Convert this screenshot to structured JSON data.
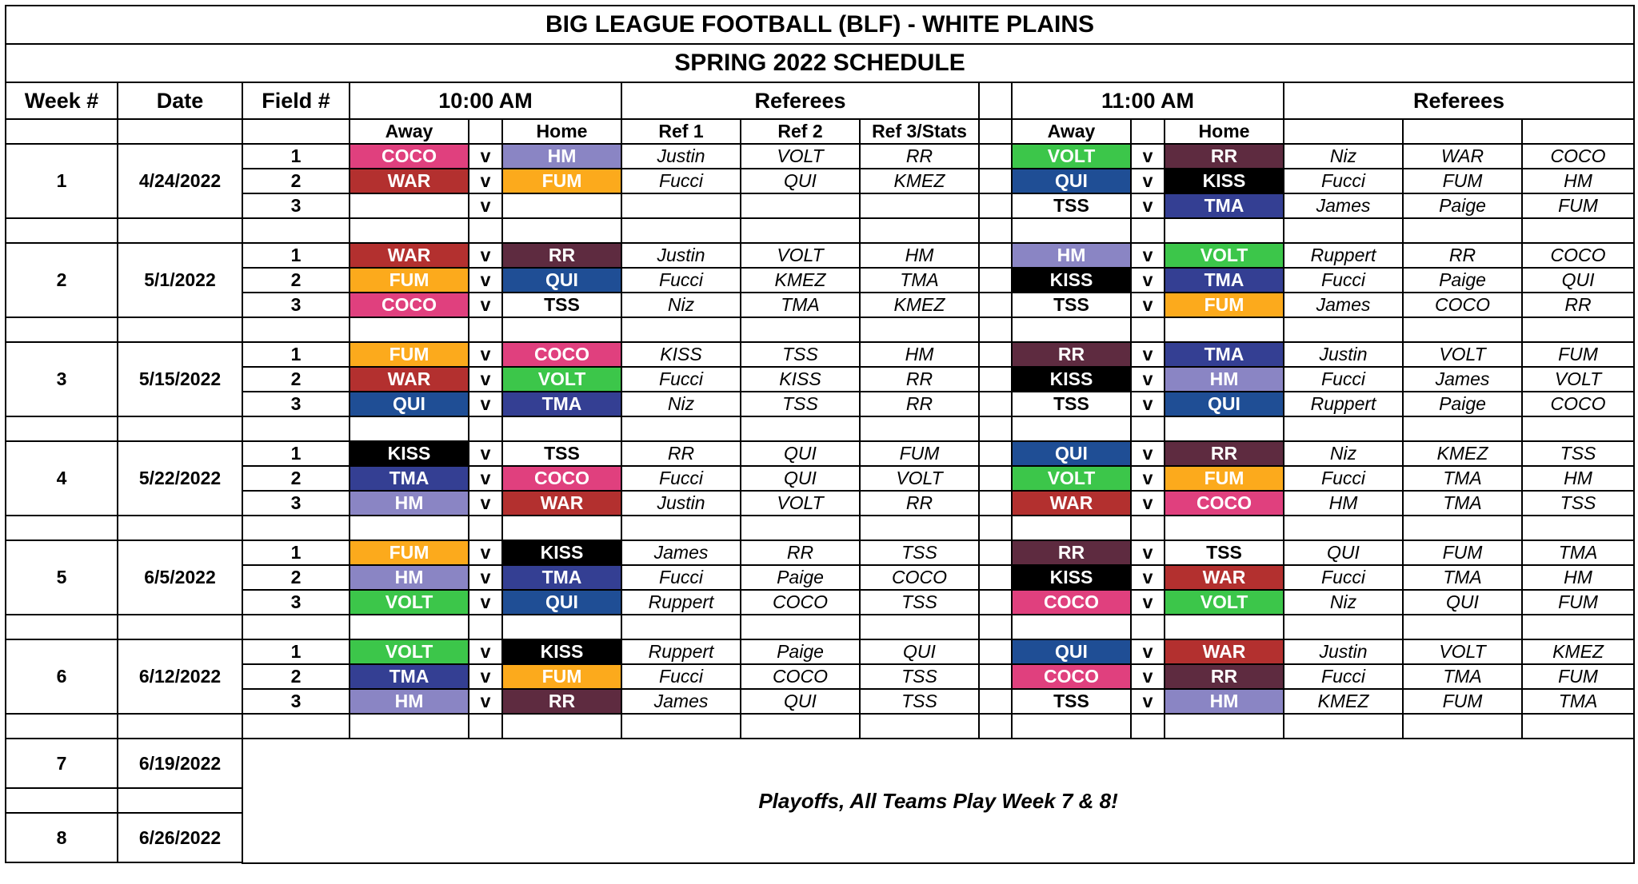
{
  "title": "BIG LEAGUE FOOTBALL (BLF) - WHITE PLAINS",
  "subtitle": "SPRING 2022 SCHEDULE",
  "headers": {
    "week": "Week #",
    "date": "Date",
    "field": "Field #",
    "slot1": "10:00 AM",
    "refs1": "Referees",
    "slot2": "11:00 AM",
    "refs2": "Referees"
  },
  "subheaders": {
    "away1": "Away",
    "home1": "Home",
    "ref1": "Ref 1",
    "ref2": "Ref 2",
    "ref3": "Ref 3/Stats",
    "away2": "Away",
    "home2": "Home"
  },
  "vs_label": "v",
  "team_colors": {
    "COCO": {
      "bg": "#e0407e",
      "fg": "#ffffff"
    },
    "HM": {
      "bg": "#8a85c4",
      "fg": "#ffffff"
    },
    "WAR": {
      "bg": "#b3302f",
      "fg": "#ffffff"
    },
    "FUM": {
      "bg": "#fcaa1c",
      "fg": "#ffffff"
    },
    "VOLT": {
      "bg": "#3cc64a",
      "fg": "#ffffff"
    },
    "RR": {
      "bg": "#5e2b40",
      "fg": "#ffffff"
    },
    "QUI": {
      "bg": "#1f4e95",
      "fg": "#ffffff"
    },
    "KISS": {
      "bg": "#000000",
      "fg": "#ffffff"
    },
    "TMA": {
      "bg": "#343f93",
      "fg": "#ffffff"
    },
    "TSS": {
      "bg": "#ffffff",
      "fg": "#000000"
    }
  },
  "weeks": [
    {
      "week": "1",
      "date": "4/24/2022",
      "games": [
        {
          "field": "1",
          "a1": "COCO",
          "h1": "HM",
          "r1": "Justin",
          "r2": "VOLT",
          "r3": "RR",
          "a2": "VOLT",
          "h2": "RR",
          "s1": "Niz",
          "s2": "WAR",
          "s3": "COCO"
        },
        {
          "field": "2",
          "a1": "WAR",
          "h1": "FUM",
          "r1": "Fucci",
          "r2": "QUI",
          "r3": "KMEZ",
          "a2": "QUI",
          "h2": "KISS",
          "s1": "Fucci",
          "s2": "FUM",
          "s3": "HM"
        },
        {
          "field": "3",
          "a1": "",
          "h1": "",
          "r1": "",
          "r2": "",
          "r3": "",
          "a2": "TSS",
          "h2": "TMA",
          "s1": "James",
          "s2": "Paige",
          "s3": "FUM"
        }
      ]
    },
    {
      "week": "2",
      "date": "5/1/2022",
      "games": [
        {
          "field": "1",
          "a1": "WAR",
          "h1": "RR",
          "r1": "Justin",
          "r2": "VOLT",
          "r3": "HM",
          "a2": "HM",
          "h2": "VOLT",
          "s1": "Ruppert",
          "s2": "RR",
          "s3": "COCO"
        },
        {
          "field": "2",
          "a1": "FUM",
          "h1": "QUI",
          "r1": "Fucci",
          "r2": "KMEZ",
          "r3": "TMA",
          "a2": "KISS",
          "h2": "TMA",
          "s1": "Fucci",
          "s2": "Paige",
          "s3": "QUI"
        },
        {
          "field": "3",
          "a1": "COCO",
          "h1": "TSS",
          "r1": "Niz",
          "r2": "TMA",
          "r3": "KMEZ",
          "a2": "TSS",
          "h2": "FUM",
          "s1": "James",
          "s2": "COCO",
          "s3": "RR"
        }
      ]
    },
    {
      "week": "3",
      "date": "5/15/2022",
      "games": [
        {
          "field": "1",
          "a1": "FUM",
          "h1": "COCO",
          "r1": "KISS",
          "r2": "TSS",
          "r3": "HM",
          "a2": "RR",
          "h2": "TMA",
          "s1": "Justin",
          "s2": "VOLT",
          "s3": "FUM"
        },
        {
          "field": "2",
          "a1": "WAR",
          "h1": "VOLT",
          "r1": "Fucci",
          "r2": "KISS",
          "r3": "RR",
          "a2": "KISS",
          "h2": "HM",
          "s1": "Fucci",
          "s2": "James",
          "s3": "VOLT"
        },
        {
          "field": "3",
          "a1": "QUI",
          "h1": "TMA",
          "r1": "Niz",
          "r2": "TSS",
          "r3": "RR",
          "a2": "TSS",
          "h2": "QUI",
          "s1": "Ruppert",
          "s2": "Paige",
          "s3": "COCO"
        }
      ]
    },
    {
      "week": "4",
      "date": "5/22/2022",
      "games": [
        {
          "field": "1",
          "a1": "KISS",
          "h1": "TSS",
          "r1": "RR",
          "r2": "QUI",
          "r3": "FUM",
          "a2": "QUI",
          "h2": "RR",
          "s1": "Niz",
          "s2": "KMEZ",
          "s3": "TSS"
        },
        {
          "field": "2",
          "a1": "TMA",
          "h1": "COCO",
          "r1": "Fucci",
          "r2": "QUI",
          "r3": "VOLT",
          "a2": "VOLT",
          "h2": "FUM",
          "s1": "Fucci",
          "s2": "TMA",
          "s3": "HM"
        },
        {
          "field": "3",
          "a1": "HM",
          "h1": "WAR",
          "r1": "Justin",
          "r2": "VOLT",
          "r3": "RR",
          "a2": "WAR",
          "h2": "COCO",
          "s1": "HM",
          "s2": "TMA",
          "s3": "TSS"
        }
      ]
    },
    {
      "week": "5",
      "date": "6/5/2022",
      "games": [
        {
          "field": "1",
          "a1": "FUM",
          "h1": "KISS",
          "r1": "James",
          "r2": "RR",
          "r3": "TSS",
          "a2": "RR",
          "h2": "TSS",
          "s1": "QUI",
          "s2": "FUM",
          "s3": "TMA"
        },
        {
          "field": "2",
          "a1": "HM",
          "h1": "TMA",
          "r1": "Fucci",
          "r2": "Paige",
          "r3": "COCO",
          "a2": "KISS",
          "h2": "WAR",
          "s1": "Fucci",
          "s2": "TMA",
          "s3": "HM"
        },
        {
          "field": "3",
          "a1": "VOLT",
          "h1": "QUI",
          "r1": "Ruppert",
          "r2": "COCO",
          "r3": "TSS",
          "a2": "COCO",
          "h2": "VOLT",
          "s1": "Niz",
          "s2": "QUI",
          "s3": "FUM"
        }
      ]
    },
    {
      "week": "6",
      "date": "6/12/2022",
      "games": [
        {
          "field": "1",
          "a1": "VOLT",
          "h1": "KISS",
          "r1": "Ruppert",
          "r2": "Paige",
          "r3": "QUI",
          "a2": "QUI",
          "h2": "WAR",
          "s1": "Justin",
          "s2": "VOLT",
          "s3": "KMEZ"
        },
        {
          "field": "2",
          "a1": "TMA",
          "h1": "FUM",
          "r1": "Fucci",
          "r2": "COCO",
          "r3": "TSS",
          "a2": "COCO",
          "h2": "RR",
          "s1": "Fucci",
          "s2": "TMA",
          "s3": "FUM"
        },
        {
          "field": "3",
          "a1": "HM",
          "h1": "RR",
          "r1": "James",
          "r2": "QUI",
          "r3": "TSS",
          "a2": "TSS",
          "h2": "HM",
          "s1": "KMEZ",
          "s2": "FUM",
          "s3": "TMA"
        }
      ]
    }
  ],
  "playoff_weeks": [
    {
      "week": "7",
      "date": "6/19/2022"
    },
    {
      "week": "8",
      "date": "6/26/2022"
    }
  ],
  "playoff_note": "Playoffs, All Teams Play Week 7 & 8!"
}
